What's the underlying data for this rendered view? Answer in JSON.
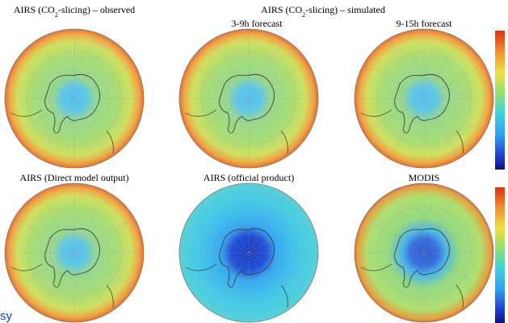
{
  "observed_title": {
    "parts": [
      "AIRS (CO",
      "2",
      "-slicing) – observed"
    ]
  },
  "simulated_title": {
    "parts": [
      "AIRS (CO",
      "2",
      "-slicing) – simulated"
    ]
  },
  "forecasts": [
    "3-9h forecast",
    "9-15h forecast"
  ],
  "bottom_titles": [
    "AIRS (Direct model output)",
    "AIRS (official product)",
    "MODIS"
  ],
  "footer_text": "sy"
}
